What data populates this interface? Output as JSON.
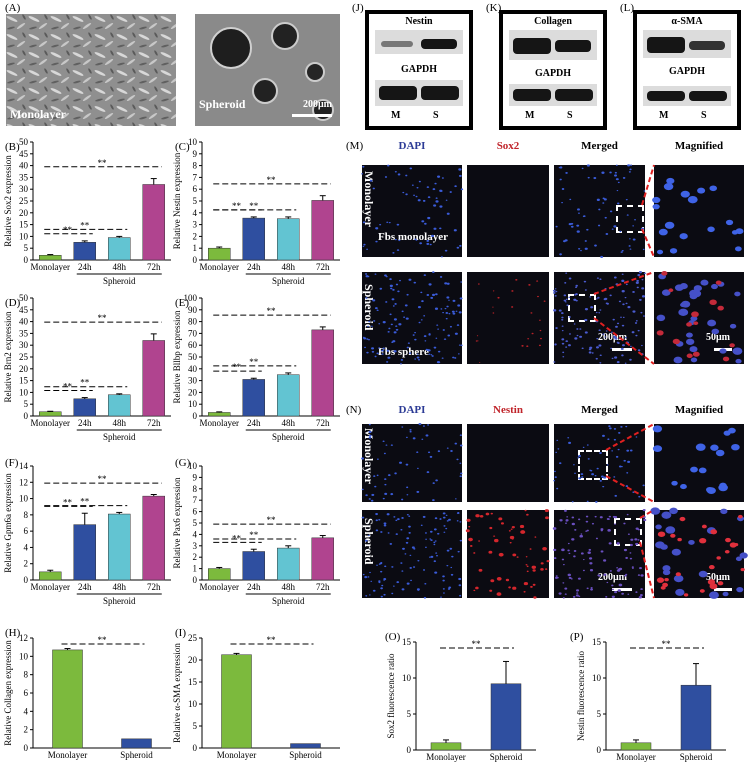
{
  "panels": {
    "A": "(A)",
    "B": "(B)",
    "C": "(C)",
    "D": "(D)",
    "E": "(E)",
    "F": "(F)",
    "G": "(G)",
    "H": "(H)",
    "I": "(I)",
    "J": "(J)",
    "K": "(K)",
    "L": "(L)",
    "M": "(M)",
    "N": "(N)",
    "O": "(O)",
    "P": "(P)"
  },
  "micrographs": {
    "monolayer_label": "Monolayer",
    "spheroid_label": "Spheroid",
    "scale": "200μm"
  },
  "blots": [
    {
      "target": "Nestin",
      "control": "GAPDH",
      "lanes": [
        "M",
        "S"
      ]
    },
    {
      "target": "Collagen",
      "control": "GAPDH",
      "lanes": [
        "M",
        "S"
      ]
    },
    {
      "target": "α-SMA",
      "control": "GAPDH",
      "lanes": [
        "M",
        "S"
      ]
    }
  ],
  "if_M": {
    "headers": [
      "DAPI",
      "Sox2",
      "Merged",
      "Magnified"
    ],
    "header_colors": [
      "#2d3c96",
      "#c0242a",
      "#000000",
      "#000000"
    ],
    "row_labels": [
      "Monolayer",
      "Spheroid"
    ],
    "tile_labels": [
      "Fbs monolayer",
      "Fbs sphere"
    ],
    "scale_200": "200μm",
    "scale_50": "50μm"
  },
  "if_N": {
    "headers": [
      "DAPI",
      "Nestin",
      "Merged",
      "Magnified"
    ],
    "header_colors": [
      "#2d3c96",
      "#c0242a",
      "#000000",
      "#000000"
    ],
    "row_labels": [
      "Monolayer",
      "Spheroid"
    ],
    "scale_200": "200μm",
    "scale_50": "50μm"
  },
  "colors": {
    "green": "#7cba3d",
    "blue": "#2f4fa0",
    "cyan": "#62c4d2",
    "magenta": "#b0448f"
  },
  "chart_data": [
    {
      "id": "B",
      "type": "bar",
      "ylabel": "Relative Sox2 expression",
      "ylim": [
        0,
        50
      ],
      "yticks": [
        0,
        5,
        10,
        15,
        20,
        25,
        30,
        35,
        40,
        45,
        50
      ],
      "categories": [
        "Monolayer",
        "24h",
        "48h",
        "72h"
      ],
      "group_label": "Spheroid",
      "values": [
        2,
        7.5,
        9.5,
        32
      ],
      "errors": [
        0.3,
        0.6,
        0.5,
        2.5
      ],
      "sig": [
        "**",
        "**",
        "**"
      ]
    },
    {
      "id": "C",
      "type": "bar",
      "ylabel": "Relative Nestin expression",
      "ylim": [
        0,
        10
      ],
      "yticks": [
        0,
        1,
        2,
        3,
        4,
        5,
        6,
        7,
        8,
        9,
        10
      ],
      "categories": [
        "Monolayer",
        "24h",
        "48h",
        "72h"
      ],
      "group_label": "Spheroid",
      "values": [
        1,
        3.55,
        3.5,
        5.05
      ],
      "errors": [
        0.1,
        0.1,
        0.15,
        0.4
      ],
      "sig": [
        "**",
        "**",
        "**"
      ]
    },
    {
      "id": "D",
      "type": "bar",
      "ylabel": "Relative Brn2 expression",
      "ylim": [
        0,
        50
      ],
      "yticks": [
        0,
        5,
        10,
        15,
        20,
        25,
        30,
        35,
        40,
        45,
        50
      ],
      "categories": [
        "Monolayer",
        "24h",
        "48h",
        "72h"
      ],
      "group_label": "Spheroid",
      "values": [
        1.8,
        7.3,
        9,
        32
      ],
      "errors": [
        0.2,
        0.5,
        0.4,
        2.8
      ],
      "sig": [
        "**",
        "**",
        "**"
      ]
    },
    {
      "id": "E",
      "type": "bar",
      "ylabel": "Relative Bllbp expression",
      "ylim": [
        0,
        100
      ],
      "yticks": [
        0,
        10,
        20,
        30,
        40,
        50,
        60,
        70,
        80,
        90,
        100
      ],
      "categories": [
        "Monolayer",
        "24h",
        "48h",
        "72h"
      ],
      "group_label": "Spheroid",
      "values": [
        3,
        31,
        35,
        73
      ],
      "errors": [
        0.5,
        1,
        1.5,
        2.5
      ],
      "sig": [
        "**",
        "**",
        "**"
      ]
    },
    {
      "id": "F",
      "type": "bar",
      "ylabel": "Relative Gpm6a expression",
      "ylim": [
        0,
        14
      ],
      "yticks": [
        0,
        2,
        4,
        6,
        8,
        10,
        12,
        14
      ],
      "categories": [
        "Monolayer",
        "24h",
        "48h",
        "72h"
      ],
      "group_label": "Spheroid",
      "values": [
        1,
        6.8,
        8.1,
        10.3
      ],
      "errors": [
        0.2,
        1.4,
        0.2,
        0.2
      ],
      "sig": [
        "**",
        "**",
        "**"
      ]
    },
    {
      "id": "G",
      "type": "bar",
      "ylabel": "Relative Pax6 expression",
      "ylim": [
        0,
        10
      ],
      "yticks": [
        0,
        1,
        2,
        3,
        4,
        5,
        6,
        7,
        8,
        9,
        10
      ],
      "categories": [
        "Monolayer",
        "24h",
        "48h",
        "72h"
      ],
      "group_label": "Spheroid",
      "values": [
        1,
        2.5,
        2.8,
        3.7
      ],
      "errors": [
        0.1,
        0.2,
        0.2,
        0.2
      ],
      "sig": [
        "**",
        "**",
        "**"
      ]
    },
    {
      "id": "H",
      "type": "bar",
      "ylabel": "Relative Collagen expression",
      "ylim": [
        0,
        12
      ],
      "yticks": [
        0,
        2,
        4,
        6,
        8,
        10,
        12
      ],
      "categories": [
        "Monolayer",
        "Spheroid"
      ],
      "values": [
        10.7,
        1
      ],
      "errors": [
        0.15,
        0
      ],
      "sig": [
        "**"
      ]
    },
    {
      "id": "I",
      "type": "bar",
      "ylabel": "Relative α-SMA expression",
      "ylim": [
        0,
        25
      ],
      "yticks": [
        0,
        5,
        10,
        15,
        20,
        25
      ],
      "categories": [
        "Monolayer",
        "Spheroid"
      ],
      "values": [
        21.2,
        1
      ],
      "errors": [
        0.3,
        0
      ],
      "sig": [
        "**"
      ]
    },
    {
      "id": "O",
      "type": "bar",
      "ylabel": "Sox2 fluorescence ratio",
      "ylim": [
        0,
        15
      ],
      "yticks": [
        0,
        5,
        10,
        15
      ],
      "categories": [
        "Monolayer",
        "Spheroid"
      ],
      "values": [
        1,
        9.2
      ],
      "errors": [
        0.4,
        3.1
      ],
      "sig": [
        "**"
      ]
    },
    {
      "id": "P",
      "type": "bar",
      "ylabel": "Nestin fluorescence ratio",
      "ylim": [
        0,
        15
      ],
      "yticks": [
        0,
        5,
        10,
        15
      ],
      "categories": [
        "Monolayer",
        "Spheroid"
      ],
      "values": [
        1,
        9
      ],
      "errors": [
        0.4,
        3
      ],
      "sig": [
        "**"
      ]
    }
  ]
}
